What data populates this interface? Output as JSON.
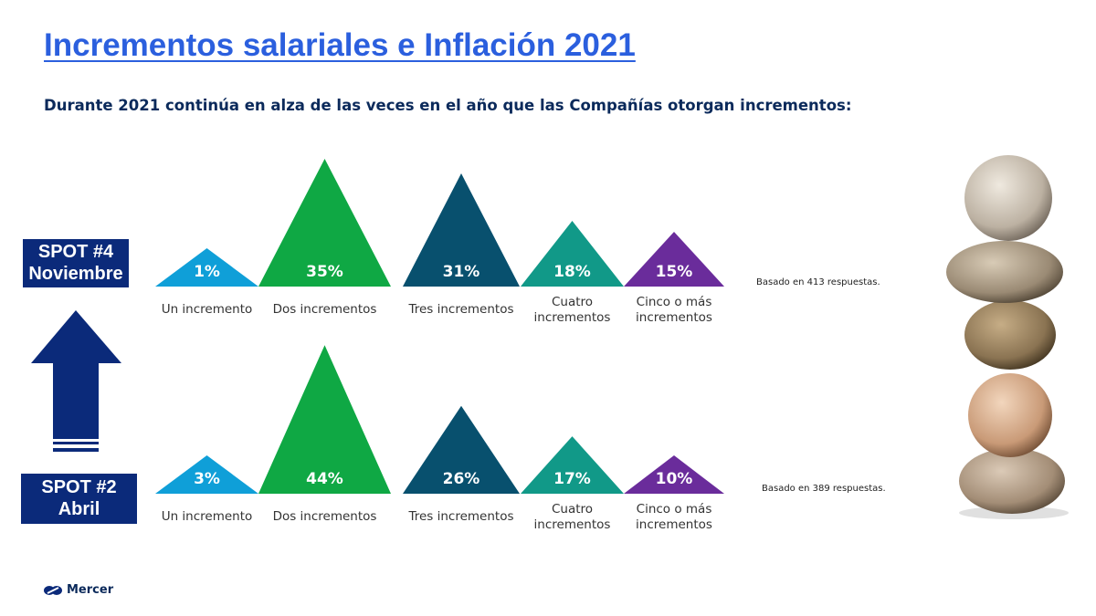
{
  "title": "Incrementos salariales e Inflación 2021",
  "subtitle": "Durante 2021 continúa en alza de las veces en el año que las Compañías otorgan incrementos:",
  "spots": [
    {
      "line1": "SPOT #4",
      "line2": "Noviembre"
    },
    {
      "line1": "SPOT #2",
      "line2": "Abril"
    }
  ],
  "logo": "Mercer",
  "colors": [
    "#0f9fd8",
    "#0fa844",
    "#08506e",
    "#119988",
    "#6a2c9b"
  ],
  "chart_data": {
    "type": "bar",
    "title": "Durante 2021 continúa en alza de las veces en el año que las Compañías otorgan incrementos:",
    "categories": [
      [
        "Un incremento"
      ],
      [
        "Dos incrementos"
      ],
      [
        "Tres incrementos"
      ],
      [
        "Cuatro",
        "incrementos"
      ],
      [
        "Cinco o más",
        "incrementos"
      ]
    ],
    "series": [
      {
        "name": "SPOT #4 Noviembre",
        "values": [
          1,
          35,
          31,
          18,
          15
        ],
        "labels": [
          "1%",
          "35%",
          "31%",
          "18%",
          "15%"
        ],
        "note": "Basado en 413 respuestas."
      },
      {
        "name": "SPOT #2 Abril",
        "values": [
          3,
          44,
          26,
          17,
          10
        ],
        "labels": [
          "3%",
          "44%",
          "26%",
          "17%",
          "10%"
        ],
        "note": "Basado en 389 respuestas."
      }
    ],
    "unit": "%"
  }
}
